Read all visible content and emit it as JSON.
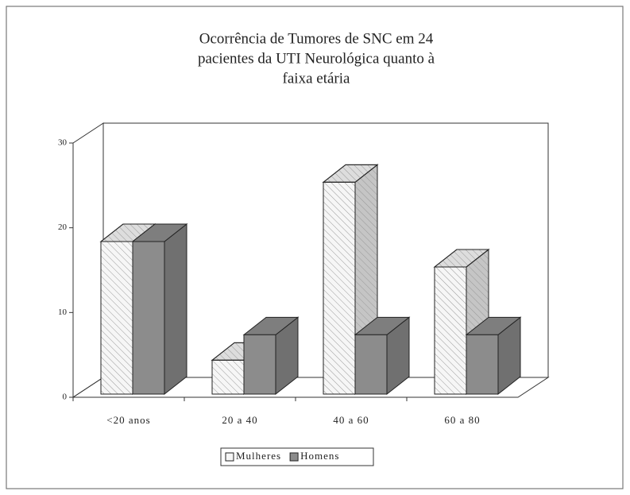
{
  "chart_data": {
    "type": "bar3d",
    "title": [
      "Ocorrência de Tumores de SNC em 24",
      "pacientes da UTI Neurológica quanto à",
      "faixa etária"
    ],
    "categories": [
      "<20 anos",
      "20 a 40",
      "40 a 60",
      "60 a 80"
    ],
    "series": [
      {
        "name": "Mulheres",
        "color": "#f6f6f6",
        "pattern": "hatch",
        "values": [
          18,
          4,
          25,
          15
        ]
      },
      {
        "name": "Homens",
        "color": "#8c8c8c",
        "values": [
          18,
          7,
          7,
          7
        ]
      }
    ],
    "ylim": [
      0,
      30
    ],
    "yticks": [
      0,
      10,
      20,
      30
    ],
    "legend": "bottom"
  }
}
